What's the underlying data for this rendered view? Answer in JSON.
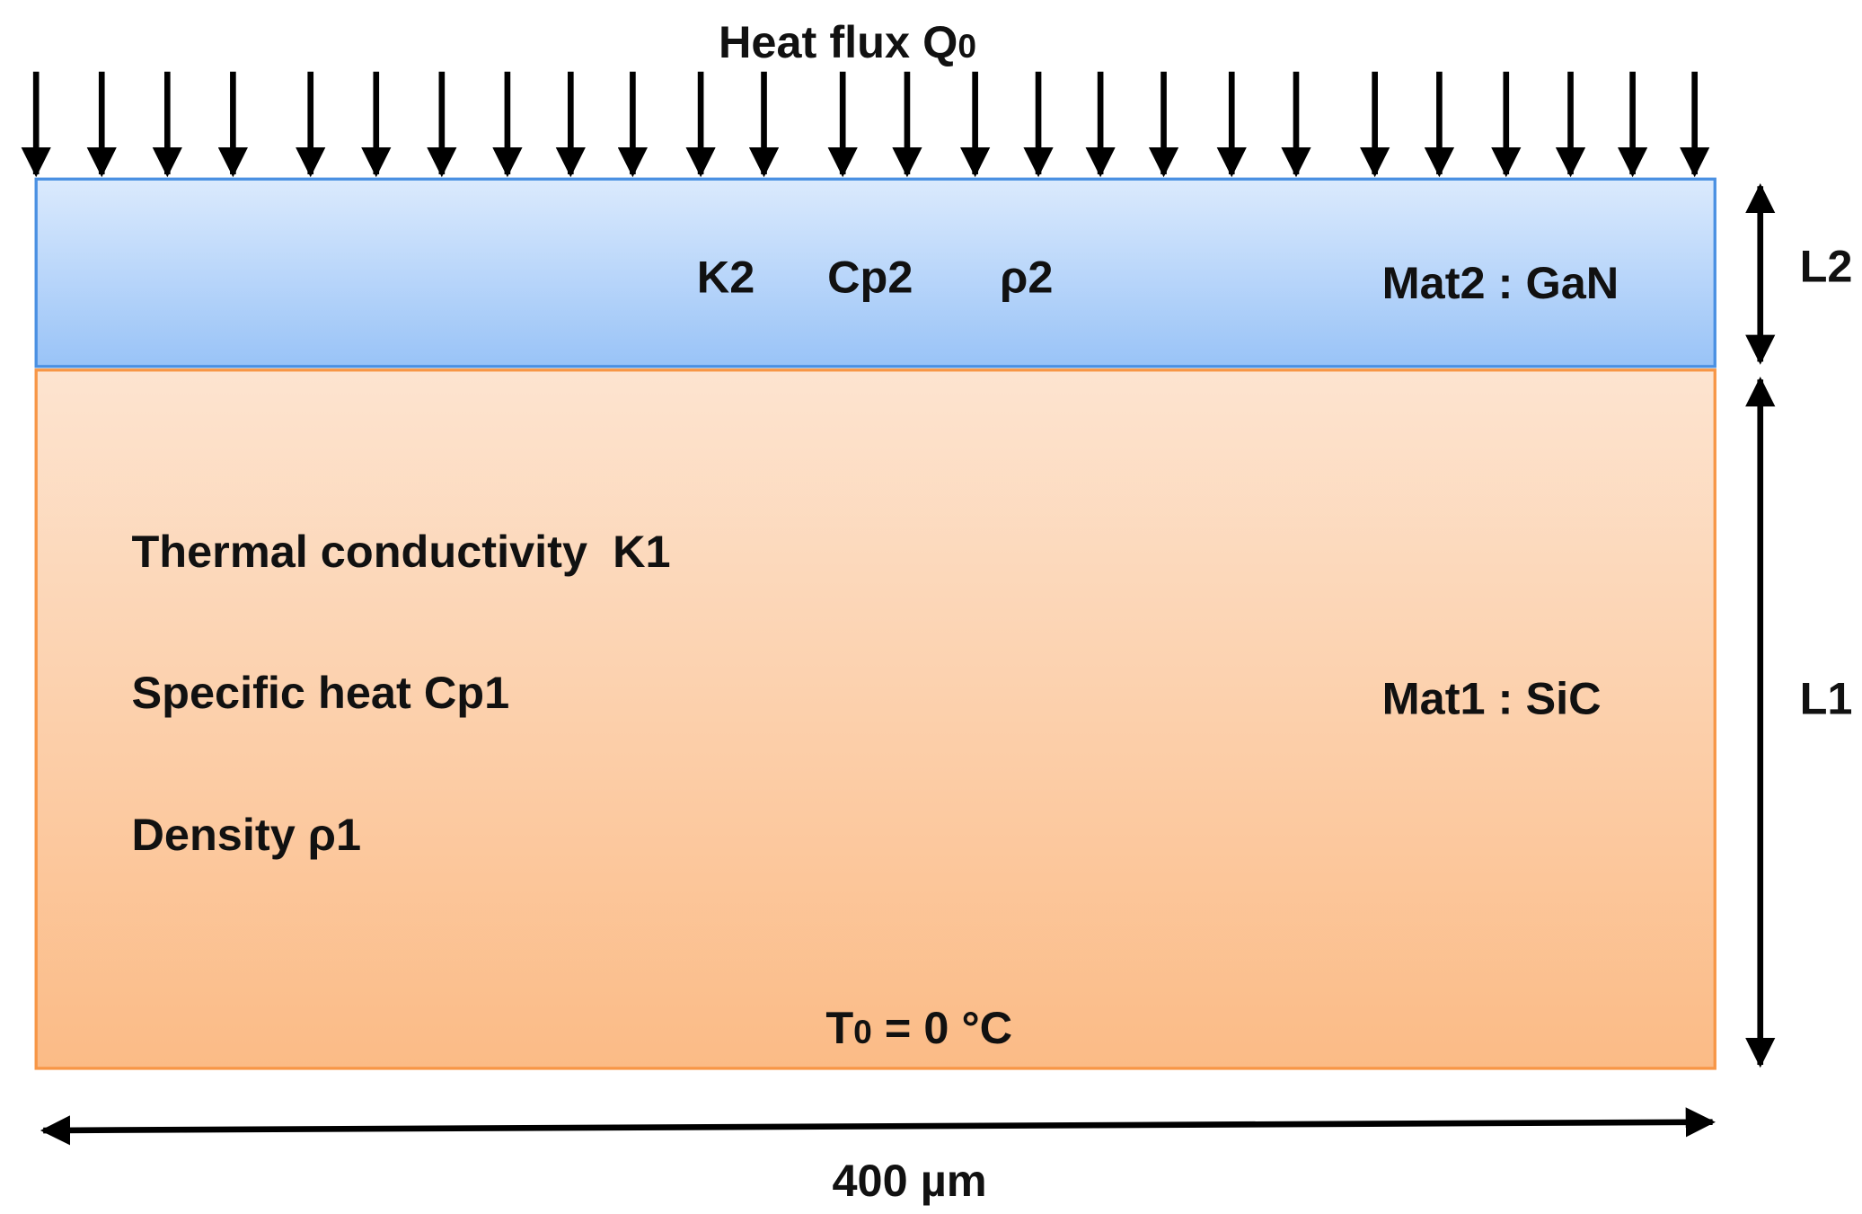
{
  "heat_flux": {
    "text": "Heat flux Q",
    "subscript": "0"
  },
  "top_layer": {
    "material": "Mat2 : GaN",
    "properties": [
      "K2",
      "Cp2",
      "ρ2"
    ],
    "thickness": "L2"
  },
  "bottom_layer": {
    "material": "Mat1 : SiC",
    "properties": [
      "Thermal conductivity  K1",
      "Specific heat Cp1",
      "Density ρ1"
    ],
    "thickness": "L1",
    "boundary": {
      "symbol": "T",
      "subscript": "0",
      "text": " = 0 °C"
    }
  },
  "width_label": "400 µm"
}
